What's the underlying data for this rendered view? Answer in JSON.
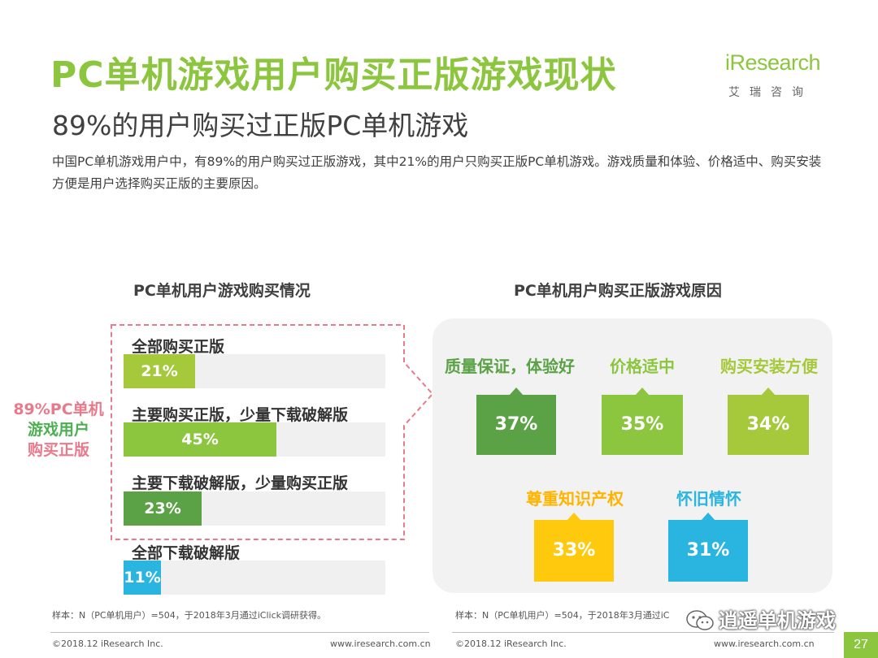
{
  "header": {
    "title": "PC单机游戏用户购买正版游戏现状",
    "subtitle": "89%的用户购买过正版PC单机游戏",
    "description": "中国PC单机游戏用户中，有89%的用户购买过正版游戏，其中21%的用户只购买正版PC单机游戏。游戏质量和体验、价格适中、购买安装方便是用户选择购买正版的主要原因。"
  },
  "logo": {
    "text": "iResearch",
    "cn": "艾瑞咨询",
    "color": "#8cc63f"
  },
  "side_label": {
    "line1": "89%PC单机",
    "line2": "游戏用户",
    "line3": "购买正版"
  },
  "chart_data": [
    {
      "type": "bar",
      "title": "PC单机用户游戏购买情况",
      "categories": [
        "全部购买正版",
        "主要购买正版，少量下载破解版",
        "主要下载破解版，少量购买正版",
        "全部下载破解版"
      ],
      "values": [
        21,
        45,
        23,
        11
      ],
      "value_labels": [
        "21%",
        "45%",
        "23%",
        "11%"
      ],
      "colors": [
        "#a5c93a",
        "#8cc63f",
        "#5aa245",
        "#29b5e0"
      ],
      "xlim": [
        0,
        100
      ]
    },
    {
      "type": "table",
      "title": "PC单机用户购买正版游戏原因",
      "categories": [
        "质量保证，体验好",
        "价格适中",
        "购买安装方便",
        "尊重知识产权",
        "怀旧情怀"
      ],
      "values": [
        37,
        35,
        34,
        33,
        31
      ],
      "value_labels": [
        "37%",
        "35%",
        "34%",
        "33%",
        "31%"
      ],
      "box_colors": [
        "#5aa245",
        "#8cc63f",
        "#a5c93a",
        "#ffc90e",
        "#29b5e0"
      ],
      "label_colors": [
        "#5aa245",
        "#8cc63f",
        "#a5c93a",
        "#ffb400",
        "#29b5e0"
      ]
    }
  ],
  "notes": {
    "left": "样本：N（PC单机用户）=504，于2018年3月通过iClick调研获得。",
    "right": "样本：N（PC单机用户）=504，于2018年3月通过iC"
  },
  "footer": {
    "copyright": "©2018.12 iResearch Inc.",
    "site": "www.iresearch.com.cn"
  },
  "watermark": "逍遥单机游戏",
  "page_number": "27",
  "accent_color": "#8cc63f",
  "callout_color": "#e87a8c"
}
